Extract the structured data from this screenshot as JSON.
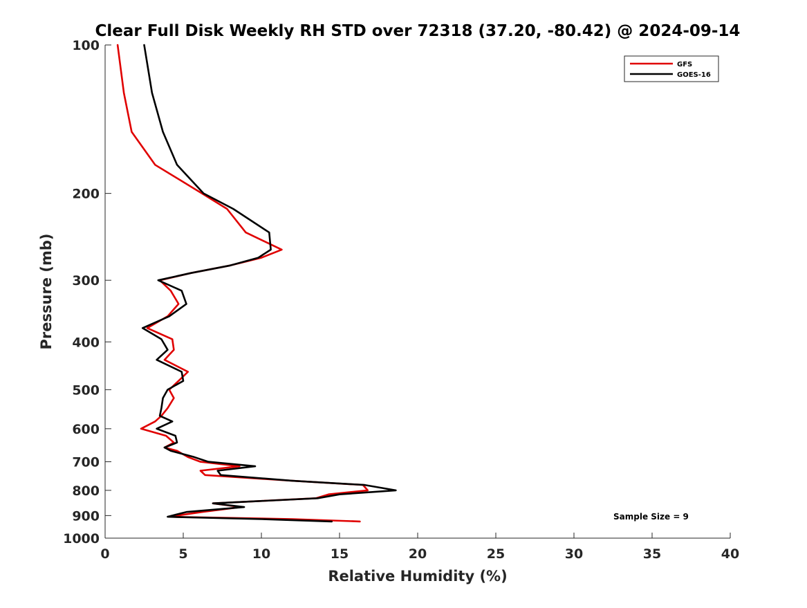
{
  "chart_data": {
    "type": "line",
    "title": "Clear Full Disk Weekly RH STD over 72318 (37.20, -80.42) @ 2024-09-14",
    "xlabel": "Relative Humidity (%)",
    "ylabel": "Pressure (mb)",
    "xlim": [
      0,
      40
    ],
    "ylim": [
      100,
      1000
    ],
    "y_scale": "log",
    "y_reversed": true,
    "xticks": [
      "0",
      "5",
      "10",
      "15",
      "20",
      "25",
      "30",
      "35",
      "40"
    ],
    "yticks": [
      "100",
      "200",
      "300",
      "400",
      "500",
      "600",
      "700",
      "800",
      "900",
      "1000"
    ],
    "grid": false,
    "legend_position": "top-right",
    "annotation": "Sample Size = 9",
    "series": [
      {
        "name": "GFS",
        "color": "#e00000",
        "points": [
          [
            0.8,
            100
          ],
          [
            1.2,
            125
          ],
          [
            1.7,
            150
          ],
          [
            3.2,
            175
          ],
          [
            6.2,
            200
          ],
          [
            7.8,
            215
          ],
          [
            9.0,
            240
          ],
          [
            11.3,
            260
          ],
          [
            10.0,
            270
          ],
          [
            8.0,
            280
          ],
          [
            5.5,
            290
          ],
          [
            3.5,
            300
          ],
          [
            4.2,
            315
          ],
          [
            4.7,
            335
          ],
          [
            4.0,
            355
          ],
          [
            2.7,
            375
          ],
          [
            4.3,
            395
          ],
          [
            4.4,
            415
          ],
          [
            3.8,
            435
          ],
          [
            5.3,
            460
          ],
          [
            4.7,
            480
          ],
          [
            4.1,
            500
          ],
          [
            4.4,
            520
          ],
          [
            4.0,
            545
          ],
          [
            3.6,
            565
          ],
          [
            3.2,
            580
          ],
          [
            2.3,
            600
          ],
          [
            3.9,
            620
          ],
          [
            4.4,
            640
          ],
          [
            3.8,
            655
          ],
          [
            4.6,
            665
          ],
          [
            5.3,
            685
          ],
          [
            6.1,
            700
          ],
          [
            8.6,
            715
          ],
          [
            6.1,
            730
          ],
          [
            6.4,
            745
          ],
          [
            12.0,
            765
          ],
          [
            16.5,
            780
          ],
          [
            16.8,
            800
          ],
          [
            14.3,
            815
          ],
          [
            13.5,
            830
          ],
          [
            6.9,
            850
          ],
          [
            8.7,
            865
          ],
          [
            6.2,
            885
          ],
          [
            4.1,
            905
          ],
          [
            12.0,
            915
          ],
          [
            16.3,
            925
          ]
        ]
      },
      {
        "name": "GOES-16",
        "color": "#000000",
        "points": [
          [
            2.5,
            100
          ],
          [
            3.0,
            125
          ],
          [
            3.7,
            150
          ],
          [
            4.6,
            175
          ],
          [
            6.3,
            200
          ],
          [
            8.2,
            215
          ],
          [
            10.5,
            240
          ],
          [
            10.6,
            260
          ],
          [
            9.8,
            270
          ],
          [
            8.0,
            280
          ],
          [
            5.5,
            290
          ],
          [
            3.4,
            300
          ],
          [
            4.9,
            315
          ],
          [
            5.2,
            335
          ],
          [
            4.1,
            355
          ],
          [
            2.4,
            375
          ],
          [
            3.6,
            395
          ],
          [
            4.0,
            415
          ],
          [
            3.3,
            435
          ],
          [
            4.9,
            460
          ],
          [
            5.0,
            480
          ],
          [
            4.0,
            500
          ],
          [
            3.7,
            520
          ],
          [
            3.6,
            545
          ],
          [
            3.5,
            565
          ],
          [
            4.3,
            580
          ],
          [
            3.3,
            600
          ],
          [
            4.5,
            620
          ],
          [
            4.6,
            640
          ],
          [
            3.8,
            655
          ],
          [
            4.2,
            665
          ],
          [
            5.7,
            685
          ],
          [
            6.6,
            700
          ],
          [
            9.6,
            715
          ],
          [
            7.2,
            730
          ],
          [
            7.4,
            745
          ],
          [
            12.0,
            765
          ],
          [
            16.6,
            780
          ],
          [
            18.6,
            800
          ],
          [
            15.0,
            815
          ],
          [
            13.6,
            830
          ],
          [
            6.9,
            850
          ],
          [
            8.9,
            865
          ],
          [
            5.2,
            885
          ],
          [
            4.0,
            905
          ],
          [
            10.0,
            915
          ],
          [
            14.5,
            925
          ]
        ]
      }
    ]
  }
}
